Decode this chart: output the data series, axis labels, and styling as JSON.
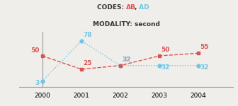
{
  "years": [
    2000,
    2001,
    2002,
    2003,
    2004
  ],
  "series_AB": [
    50,
    25,
    32,
    50,
    55
  ],
  "series_AD": [
    3,
    78,
    32,
    32,
    32
  ],
  "color_AB": "#d9534f",
  "color_AD": "#6ec6e6",
  "title_modality": "MODALITY: second",
  "bg_color": "#f0eeea",
  "xlim": [
    1999.4,
    2004.9
  ],
  "ylim": [
    -8,
    95
  ],
  "labels_AB": [
    "50",
    "25",
    "32",
    "50",
    "55"
  ],
  "labels_AD": [
    "3",
    "78",
    "32",
    "32",
    "32"
  ],
  "font_size_labels": 6.5,
  "font_size_title": 6.5,
  "font_size_axis": 6.5
}
